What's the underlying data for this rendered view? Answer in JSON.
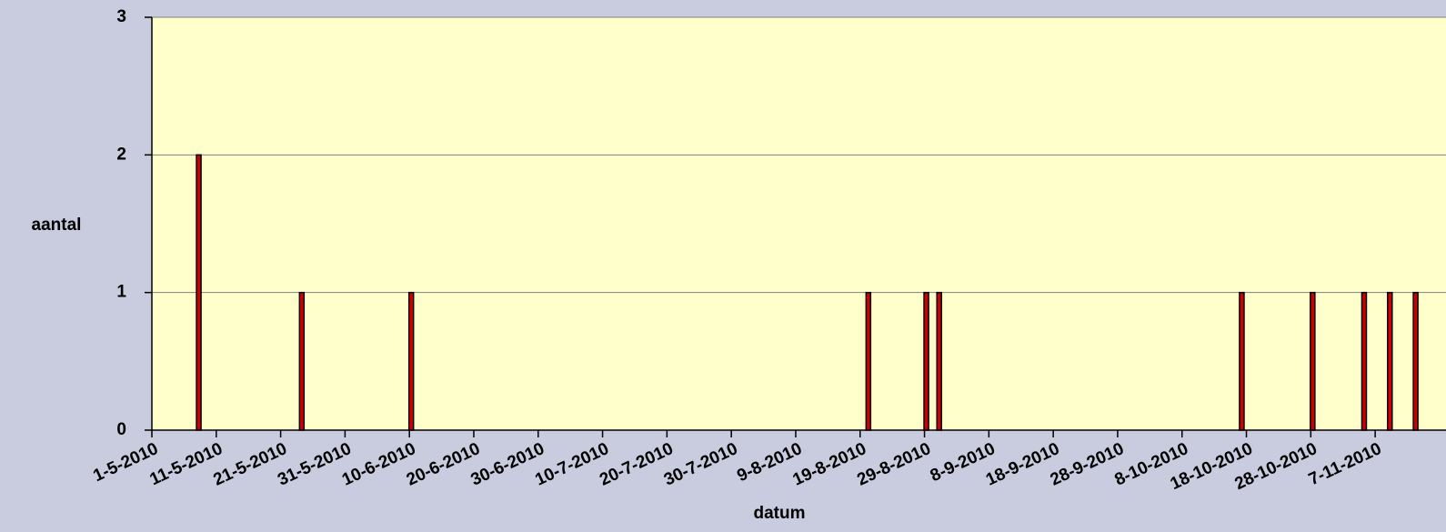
{
  "chart_data": {
    "type": "bar",
    "x": [
      "8-5-2010",
      "24-5-2010",
      "10-6-2010",
      "20-8-2010",
      "29-8-2010",
      "31-8-2010",
      "17-10-2010",
      "28-10-2010",
      "5-11-2010",
      "9-11-2010",
      "13-11-2010"
    ],
    "values": [
      2,
      1,
      1,
      1,
      1,
      1,
      1,
      1,
      1,
      1,
      1
    ],
    "color": "#cc0000",
    "xlabel": "datum",
    "ylabel": "aantal",
    "xlim": [
      "1-5-2010",
      "18-11-2010"
    ],
    "xticks": [
      "1-5-2010",
      "11-5-2010",
      "21-5-2010",
      "31-5-2010",
      "10-6-2010",
      "20-6-2010",
      "30-6-2010",
      "10-7-2010",
      "20-7-2010",
      "30-7-2010",
      "9-8-2010",
      "19-8-2010",
      "29-8-2010",
      "8-9-2010",
      "18-9-2010",
      "28-9-2010",
      "8-10-2010",
      "18-10-2010",
      "28-10-2010",
      "7-11-2010"
    ],
    "ylim": [
      0,
      3
    ],
    "yticks": [
      0,
      1,
      2,
      3
    ],
    "grid": true
  }
}
